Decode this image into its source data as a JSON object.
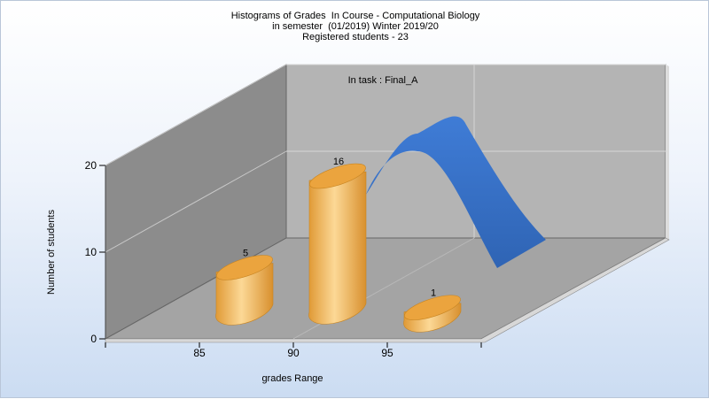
{
  "chart_data": {
    "type": "bar",
    "title_lines": [
      "Histograms of Grades  In Course - Computational Biology",
      "in semester  (01/2019) Winter 2019/20",
      "Registered students - 23"
    ],
    "annotation": "In task : Final_A",
    "xlabel": "grades Range",
    "ylabel": "Number of students",
    "x_ticks": [
      "85",
      "90",
      "95"
    ],
    "y_ticks": [
      "0",
      "10",
      "20"
    ],
    "ylim": [
      0,
      20
    ],
    "bars": [
      {
        "label": "5",
        "value": 5
      },
      {
        "label": "16",
        "value": 16
      },
      {
        "label": "1",
        "value": 1
      }
    ],
    "grid": true,
    "colors": {
      "bar": "#f0ac4c",
      "bar_highlight": "#fcd896",
      "curve": "#3a72c8",
      "curve_light": "#4f8ce0",
      "wall_left": "#8a8a8a",
      "wall_back": "#b4b4b4",
      "floor": "#a4a4a4"
    }
  }
}
